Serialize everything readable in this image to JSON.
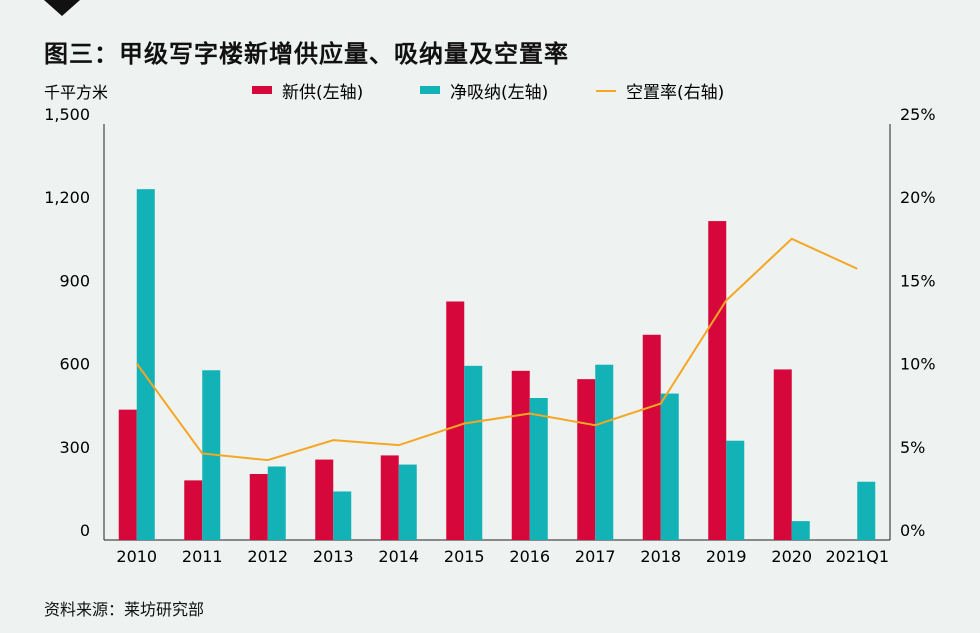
{
  "title": "图三：甲级写字楼新增供应量、吸纳量及空置率",
  "source": "资料来源：莱坊研究部",
  "chart_data": {
    "type": "bar",
    "categories": [
      "2010",
      "2011",
      "2012",
      "2013",
      "2014",
      "2015",
      "2016",
      "2017",
      "2018",
      "2019",
      "2020",
      "2021Q1"
    ],
    "left_axis_unit": "千平方米",
    "left_ticks": [
      "0",
      "300",
      "600",
      "900",
      "1,200",
      "1,500"
    ],
    "right_ticks": [
      "0%",
      "5%",
      "10%",
      "15%",
      "20%",
      "25%"
    ],
    "ylim_left": [
      0,
      1500
    ],
    "ylim_right": [
      0,
      25
    ],
    "series": [
      {
        "name": "新供(左轴)",
        "type": "bar",
        "axis": "left",
        "color": "#d6083b",
        "values": [
          470,
          215,
          238,
          290,
          305,
          860,
          610,
          580,
          740,
          1150,
          615,
          null
        ]
      },
      {
        "name": "净吸纳(左轴)",
        "type": "bar",
        "axis": "left",
        "color": "#12b2b7",
        "values": [
          1265,
          612,
          265,
          175,
          272,
          628,
          512,
          632,
          528,
          358,
          68,
          210
        ]
      },
      {
        "name": "空置率(右轴)",
        "type": "line",
        "axis": "right",
        "color": "#f5a623",
        "values": [
          10.6,
          5.2,
          4.8,
          6.0,
          5.7,
          7.0,
          7.6,
          6.9,
          8.2,
          14.4,
          18.1,
          16.3
        ]
      }
    ]
  }
}
